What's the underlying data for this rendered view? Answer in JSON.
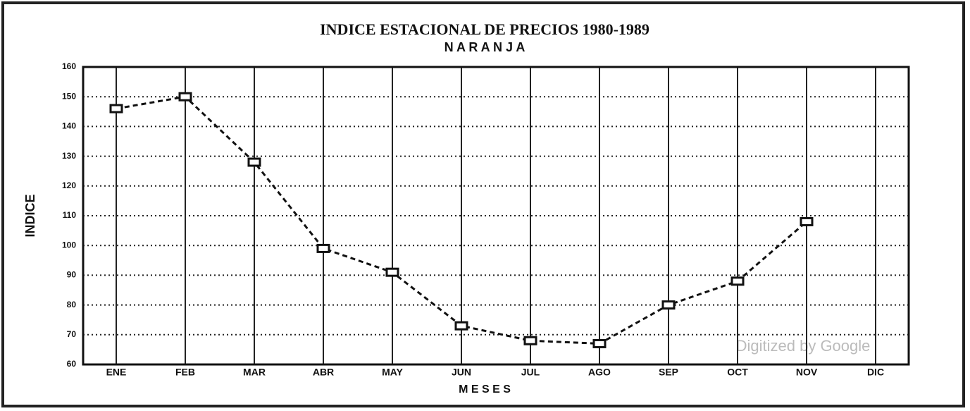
{
  "chart_data": {
    "type": "line",
    "title": "INDICE ESTACIONAL DE PRECIOS 1980-1989",
    "subtitle": "N A R A N J A",
    "x_label": "M E S E S",
    "y_label": "INDICE",
    "annotation": "Digitized by Google",
    "categories": [
      "ENE",
      "FEB",
      "MAR",
      "ABR",
      "MAY",
      "JUN",
      "JUL",
      "AGO",
      "SEP",
      "OCT",
      "NOV",
      "DIC"
    ],
    "series": [
      {
        "name": "NARANJA",
        "color": "#111111",
        "values": [
          146,
          150,
          128,
          99,
          91,
          73,
          68,
          67,
          80,
          88,
          108,
          null
        ]
      }
    ],
    "ylim": [
      60,
      160
    ],
    "yticks": [
      60,
      70,
      80,
      90,
      100,
      110,
      120,
      130,
      140,
      150,
      160
    ],
    "grid": true
  }
}
